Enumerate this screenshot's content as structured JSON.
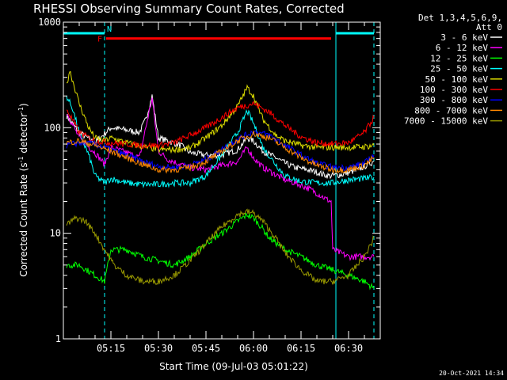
{
  "chart_data": {
    "type": "line",
    "title": "RHESSI Observing Summary Count Rates, Corrected",
    "xlabel": "Start Time (09-Jul-03 05:01:22)",
    "ylabel": "Corrected Count Rate (s⁻¹ detector⁻¹)",
    "ylabel_parts": {
      "main": "Corrected Count Rate (s",
      "exp1": "-1",
      "mid": " detector",
      "exp2": "-1",
      "end": ")"
    },
    "yscale": "log",
    "ylim": [
      1,
      1000
    ],
    "xlim_minutes": [
      300,
      400
    ],
    "x_ticks": [
      {
        "label": "05:15",
        "minute": 315
      },
      {
        "label": "05:30",
        "minute": 330
      },
      {
        "label": "05:45",
        "minute": 345
      },
      {
        "label": "06:00",
        "minute": 360
      },
      {
        "label": "06:15",
        "minute": 375
      },
      {
        "label": "06:30",
        "minute": 390
      }
    ],
    "y_ticks": [
      {
        "label": "1",
        "value": 1
      },
      {
        "label": "10",
        "value": 10
      },
      {
        "label": "100",
        "value": 100
      },
      {
        "label": "1000",
        "value": 1000
      }
    ],
    "detectors_line1": "Det 1,3,4,5,6,9,",
    "detectors_line2": "Att 0",
    "annotation_n": "N",
    "annotation_f": "F",
    "timestamp": "20-Oct-2021 14:34",
    "night_intervals_minutes": [
      [
        300,
        313
      ],
      [
        386,
        398
      ]
    ],
    "flare_flag_minutes": [
      313.5,
      384.5
    ],
    "flare_flag_value": 700,
    "series": [
      {
        "name": "3 - 6 keV",
        "color": "#ffffff",
        "x": [
          301,
          305,
          310,
          315,
          320,
          324,
          326,
          328,
          330,
          333,
          337,
          340,
          345,
          350,
          355,
          358,
          360,
          363,
          367,
          370,
          373,
          377,
          380,
          382,
          384,
          388,
          393,
          398
        ],
        "y": [
          130,
          90,
          72,
          100,
          95,
          90,
          120,
          200,
          80,
          75,
          68,
          58,
          55,
          55,
          62,
          80,
          75,
          60,
          52,
          46,
          42,
          40,
          38,
          36,
          35,
          36,
          40,
          48
        ]
      },
      {
        "name": "6 - 12 keV",
        "color": "#ff00ff",
        "x": [
          301,
          305,
          310,
          313,
          315,
          320,
          324,
          326,
          328,
          330,
          333,
          337,
          340,
          345,
          350,
          355,
          358,
          360,
          363,
          367,
          370,
          373,
          377,
          380,
          383,
          384.5,
          385,
          390,
          395,
          398
        ],
        "y": [
          140,
          80,
          58,
          45,
          65,
          58,
          52,
          100,
          190,
          60,
          50,
          45,
          42,
          40,
          44,
          48,
          65,
          52,
          42,
          36,
          32,
          30,
          27,
          24,
          21,
          20,
          7,
          6,
          6,
          6
        ]
      },
      {
        "name": "12 - 25 keV",
        "color": "#00ff00",
        "x": [
          301,
          305,
          310,
          313,
          315,
          320,
          325,
          330,
          335,
          340,
          345,
          350,
          355,
          358,
          360,
          363,
          365,
          370,
          375,
          380,
          385,
          390,
          395,
          398
        ],
        "y": [
          5,
          5,
          4,
          3.5,
          7,
          7,
          6,
          5.5,
          5,
          6,
          8,
          10,
          13,
          15,
          14,
          11,
          9,
          7,
          6,
          5,
          4.5,
          4,
          3.5,
          3
        ]
      },
      {
        "name": "25 - 50 keV",
        "color": "#00ffff",
        "x": [
          301,
          303,
          305,
          308,
          310,
          313,
          315,
          320,
          325,
          330,
          335,
          340,
          345,
          350,
          355,
          358,
          360,
          363,
          367,
          370,
          375,
          380,
          385,
          390,
          395,
          398
        ],
        "y": [
          200,
          150,
          90,
          55,
          35,
          30,
          33,
          30,
          29,
          29,
          30,
          30,
          35,
          55,
          90,
          145,
          110,
          65,
          45,
          35,
          31,
          30,
          30,
          32,
          33,
          34
        ]
      },
      {
        "name": "50 - 100 keV",
        "color": "#dddd00",
        "x": [
          301,
          302,
          305,
          308,
          310,
          313,
          315,
          320,
          325,
          330,
          335,
          340,
          345,
          350,
          355,
          358,
          360,
          363,
          367,
          370,
          375,
          380,
          385,
          390,
          395,
          398
        ],
        "y": [
          250,
          350,
          170,
          100,
          80,
          75,
          80,
          72,
          66,
          62,
          62,
          64,
          80,
          105,
          160,
          240,
          200,
          120,
          85,
          75,
          68,
          65,
          65,
          65,
          66,
          68
        ]
      },
      {
        "name": "100 - 300 keV",
        "color": "#ff0000",
        "x": [
          301,
          305,
          310,
          315,
          320,
          325,
          330,
          335,
          340,
          345,
          350,
          355,
          360,
          365,
          370,
          375,
          380,
          385,
          390,
          395,
          398
        ],
        "y": [
          150,
          90,
          75,
          72,
          70,
          68,
          68,
          72,
          85,
          100,
          125,
          155,
          170,
          140,
          105,
          82,
          72,
          70,
          72,
          90,
          125
        ]
      },
      {
        "name": "300 - 800 keV",
        "color": "#0000ff",
        "x": [
          301,
          305,
          310,
          315,
          320,
          325,
          330,
          335,
          340,
          345,
          350,
          355,
          360,
          365,
          370,
          375,
          380,
          385,
          390,
          395,
          398
        ],
        "y": [
          68,
          72,
          70,
          62,
          55,
          48,
          43,
          42,
          44,
          50,
          62,
          78,
          92,
          85,
          68,
          55,
          46,
          42,
          42,
          46,
          55
        ]
      },
      {
        "name": "800 - 7000 keV",
        "color": "#ff8800",
        "x": [
          301,
          305,
          310,
          315,
          320,
          325,
          330,
          335,
          340,
          345,
          350,
          355,
          360,
          365,
          370,
          375,
          380,
          385,
          390,
          395,
          398
        ],
        "y": [
          72,
          75,
          68,
          60,
          52,
          45,
          40,
          40,
          42,
          48,
          60,
          75,
          88,
          80,
          65,
          52,
          44,
          40,
          40,
          44,
          52
        ]
      },
      {
        "name": "7000 - 15000 keV",
        "color": "#999900",
        "x": [
          301,
          304,
          307,
          310,
          313,
          316,
          320,
          325,
          330,
          335,
          340,
          345,
          350,
          355,
          358,
          360,
          363,
          367,
          370,
          375,
          380,
          385,
          390,
          395,
          398
        ],
        "y": [
          12,
          14,
          13,
          10,
          7,
          5,
          4,
          3.5,
          3.5,
          4,
          5.5,
          8,
          11.5,
          15,
          16,
          15.5,
          13,
          9,
          6.5,
          4.5,
          3.5,
          3.5,
          4,
          6,
          9
        ]
      }
    ]
  }
}
